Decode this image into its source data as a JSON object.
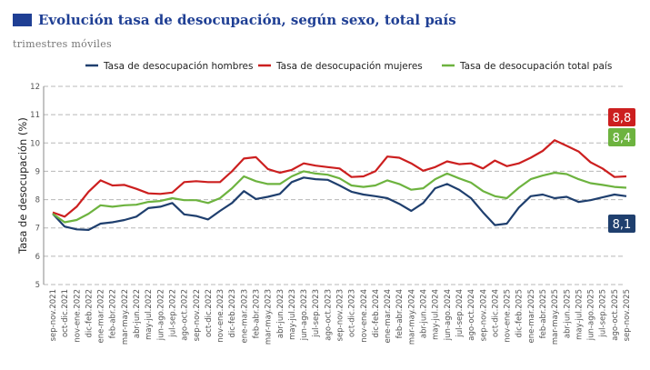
{
  "title": "Evolución tasa de desocupación, según sexo, total país",
  "subtitle": "trimestres móviles",
  "chart_data": {
    "type": "line",
    "ylabel": "Tasa de desocupación (%)",
    "ylim": [
      5,
      12
    ],
    "yticks": [
      5,
      6,
      7,
      8,
      9,
      10,
      11,
      12
    ],
    "grid": true,
    "legend_position": "top",
    "categories": [
      "sep-nov.2021",
      "oct-dic.2021",
      "nov-ene.2022",
      "dic-feb.2022",
      "ene-mar.2022",
      "feb-abr.2022",
      "mar-may.2022",
      "abr-jun.2022",
      "may-jul.2022",
      "jun-ago.2022",
      "jul-sep.2022",
      "ago-oct.2022",
      "sep-nov.2022",
      "oct-dic.2022",
      "nov-ene.2023",
      "dic-feb.2023",
      "ene-mar.2023",
      "feb-abr.2023",
      "mar-may.2023",
      "abr-jun.2023",
      "may-jul.2023",
      "jun-ago.2023",
      "jul-sep.2023",
      "ago-oct.2023",
      "sep-nov.2023",
      "oct-dic.2023",
      "nov-ene.2024",
      "dic-feb.2024",
      "ene-mar.2024",
      "feb-abr.2024",
      "mar-may.2024",
      "abr-jun.2024",
      "may-jul.2024",
      "jun-ago.2024",
      "jul-sep.2024",
      "ago-oct.2024",
      "sep-nov.2024",
      "oct-dic.2024",
      "nov-ene.2025",
      "dic-feb.2025",
      "ene-mar.2025",
      "feb-abr.2025",
      "mar-may.2025",
      "abr-jun.2025",
      "may-jul.2025",
      "jun-ago.2025",
      "jul-sep.2025",
      "ago-oct.2025",
      "sep-nov.2025"
    ],
    "series": [
      {
        "name": "Tasa de desocupación hombres",
        "color": "#1f3f6e",
        "end_label": "8,1",
        "values": [
          7.5,
          7.05,
          6.95,
          6.93,
          7.15,
          7.2,
          7.28,
          7.4,
          7.7,
          7.75,
          7.88,
          7.48,
          7.42,
          7.3,
          7.6,
          7.88,
          8.3,
          8.02,
          8.1,
          8.2,
          8.62,
          8.78,
          8.72,
          8.7,
          8.5,
          8.28,
          8.18,
          8.12,
          8.05,
          7.85,
          7.6,
          7.88,
          8.4,
          8.55,
          8.35,
          8.05,
          7.55,
          7.1,
          7.15,
          7.72,
          8.12,
          8.18,
          8.05,
          8.1,
          7.92,
          7.98,
          8.08,
          8.18,
          8.12
        ]
      },
      {
        "name": "Tasa de desocupación mujeres",
        "color": "#cc1f1f",
        "end_label": "8,8",
        "values": [
          7.55,
          7.4,
          7.75,
          8.28,
          8.68,
          8.5,
          8.52,
          8.38,
          8.22,
          8.2,
          8.25,
          8.62,
          8.65,
          8.62,
          8.62,
          9.0,
          9.45,
          9.5,
          9.08,
          8.95,
          9.05,
          9.28,
          9.2,
          9.15,
          9.1,
          8.8,
          8.82,
          9.0,
          9.52,
          9.48,
          9.28,
          9.02,
          9.15,
          9.35,
          9.25,
          9.28,
          9.1,
          9.38,
          9.18,
          9.28,
          9.48,
          9.72,
          10.1,
          9.9,
          9.7,
          9.32,
          9.1,
          8.8,
          8.82
        ]
      },
      {
        "name": "Tasa de desocupación total país",
        "color": "#6db33f",
        "end_label": "8,4",
        "values": [
          7.5,
          7.2,
          7.28,
          7.5,
          7.8,
          7.75,
          7.8,
          7.82,
          7.92,
          7.95,
          8.05,
          7.98,
          7.98,
          7.88,
          8.05,
          8.4,
          8.82,
          8.65,
          8.55,
          8.55,
          8.82,
          9.0,
          8.92,
          8.88,
          8.75,
          8.5,
          8.45,
          8.5,
          8.68,
          8.55,
          8.35,
          8.4,
          8.72,
          8.92,
          8.75,
          8.6,
          8.3,
          8.12,
          8.05,
          8.42,
          8.72,
          8.85,
          8.95,
          8.9,
          8.72,
          8.58,
          8.52,
          8.45,
          8.42
        ]
      }
    ]
  }
}
